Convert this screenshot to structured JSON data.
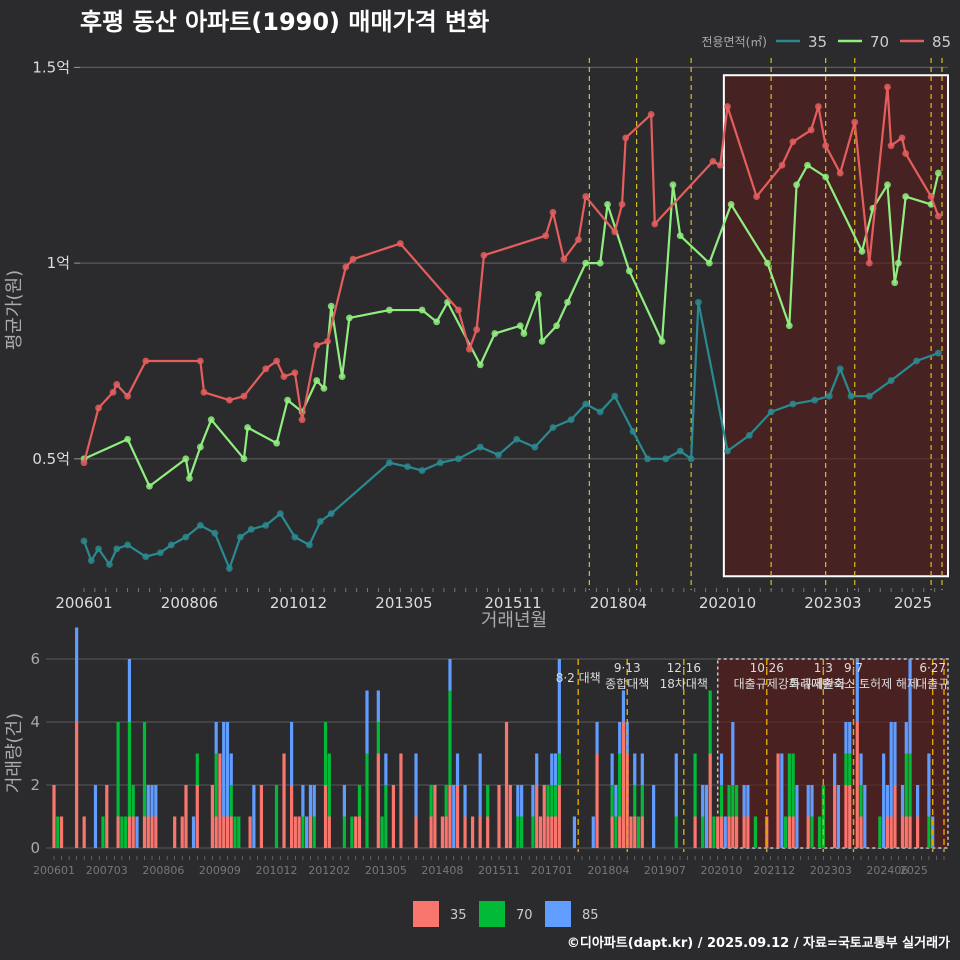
{
  "chart_data": [
    {
      "type": "line",
      "title": "후평 동산 아파트(1990) 매매가격 변화",
      "xlabel": "거래년월",
      "ylabel": "평균가(원)",
      "y_unit": "억",
      "ylim": [
        0.17,
        1.57
      ],
      "y_ticks": [
        {
          "value": 0.5,
          "label": "0.5억"
        },
        {
          "value": 1.0,
          "label": "1억"
        },
        {
          "value": 1.5,
          "label": "1.5억"
        }
      ],
      "x_tick_labels": [
        "200601",
        "200806",
        "201012",
        "201305",
        "201511",
        "201804",
        "202010",
        "202303",
        "2025"
      ],
      "legend": {
        "title": "전용면적(㎡)",
        "position": "top-right"
      },
      "series": [
        {
          "name": "35",
          "color": "#2a8a8f",
          "points": [
            [
              "2006-01",
              0.29
            ],
            [
              "2006-03",
              0.24
            ],
            [
              "2006-05",
              0.27
            ],
            [
              "2006-08",
              0.23
            ],
            [
              "2006-10",
              0.27
            ],
            [
              "2007-01",
              0.28
            ],
            [
              "2007-06",
              0.25
            ],
            [
              "2007-10",
              0.26
            ],
            [
              "2008-01",
              0.28
            ],
            [
              "2008-05",
              0.3
            ],
            [
              "2008-09",
              0.33
            ],
            [
              "2009-01",
              0.31
            ],
            [
              "2009-05",
              0.22
            ],
            [
              "2009-08",
              0.3
            ],
            [
              "2009-11",
              0.32
            ],
            [
              "2010-03",
              0.33
            ],
            [
              "2010-07",
              0.36
            ],
            [
              "2010-11",
              0.3
            ],
            [
              "2011-03",
              0.28
            ],
            [
              "2011-06",
              0.34
            ],
            [
              "2011-09",
              0.36
            ],
            [
              "2013-01",
              0.49
            ],
            [
              "2013-06",
              0.48
            ],
            [
              "2013-10",
              0.47
            ],
            [
              "2014-03",
              0.49
            ],
            [
              "2014-08",
              0.5
            ],
            [
              "2015-02",
              0.53
            ],
            [
              "2015-07",
              0.51
            ],
            [
              "2015-12",
              0.55
            ],
            [
              "2016-05",
              0.53
            ],
            [
              "2016-10",
              0.58
            ],
            [
              "2017-03",
              0.6
            ],
            [
              "2017-07",
              0.64
            ],
            [
              "2017-11",
              0.62
            ],
            [
              "2018-03",
              0.66
            ],
            [
              "2018-08",
              0.57
            ],
            [
              "2018-12",
              0.5
            ],
            [
              "2019-05",
              0.5
            ],
            [
              "2019-09",
              0.52
            ],
            [
              "2019-12",
              0.5
            ],
            [
              "2020-02",
              0.9
            ],
            [
              "2020-10",
              0.52
            ],
            [
              "2021-04",
              0.56
            ],
            [
              "2021-10",
              0.62
            ],
            [
              "2022-04",
              0.64
            ],
            [
              "2022-10",
              0.65
            ],
            [
              "2023-02",
              0.66
            ],
            [
              "2023-05",
              0.73
            ],
            [
              "2023-08",
              0.66
            ],
            [
              "2024-01",
              0.66
            ],
            [
              "2024-07",
              0.7
            ],
            [
              "2025-02",
              0.75
            ],
            [
              "2025-08",
              0.77
            ]
          ]
        },
        {
          "name": "70",
          "color": "#90ee80",
          "points": [
            [
              "2006-01",
              0.5
            ],
            [
              "2007-01",
              0.55
            ],
            [
              "2007-07",
              0.43
            ],
            [
              "2008-05",
              0.5
            ],
            [
              "2008-06",
              0.45
            ],
            [
              "2008-09",
              0.53
            ],
            [
              "2008-12",
              0.6
            ],
            [
              "2009-09",
              0.5
            ],
            [
              "2009-10",
              0.58
            ],
            [
              "2010-06",
              0.54
            ],
            [
              "2010-09",
              0.65
            ],
            [
              "2011-01",
              0.62
            ],
            [
              "2011-05",
              0.7
            ],
            [
              "2011-07",
              0.68
            ],
            [
              "2011-09",
              0.89
            ],
            [
              "2011-12",
              0.71
            ],
            [
              "2012-02",
              0.86
            ],
            [
              "2013-01",
              0.88
            ],
            [
              "2013-10",
              0.88
            ],
            [
              "2014-02",
              0.85
            ],
            [
              "2014-05",
              0.9
            ],
            [
              "2015-02",
              0.74
            ],
            [
              "2015-06",
              0.82
            ],
            [
              "2016-01",
              0.84
            ],
            [
              "2016-02",
              0.82
            ],
            [
              "2016-06",
              0.92
            ],
            [
              "2016-07",
              0.8
            ],
            [
              "2016-11",
              0.84
            ],
            [
              "2017-02",
              0.9
            ],
            [
              "2017-07",
              1.0
            ],
            [
              "2017-11",
              1.0
            ],
            [
              "2018-01",
              1.15
            ],
            [
              "2018-07",
              0.98
            ],
            [
              "2019-04",
              0.8
            ],
            [
              "2019-07",
              1.2
            ],
            [
              "2019-09",
              1.07
            ],
            [
              "2020-05",
              1.0
            ],
            [
              "2020-11",
              1.15
            ],
            [
              "2021-09",
              1.0
            ],
            [
              "2022-03",
              0.84
            ],
            [
              "2022-05",
              1.2
            ],
            [
              "2022-08",
              1.25
            ],
            [
              "2023-01",
              1.22
            ],
            [
              "2023-11",
              1.03
            ],
            [
              "2024-02",
              1.14
            ],
            [
              "2024-06",
              1.2
            ],
            [
              "2024-08",
              0.95
            ],
            [
              "2024-09",
              1.0
            ],
            [
              "2024-11",
              1.17
            ],
            [
              "2025-06",
              1.15
            ],
            [
              "2025-08",
              1.23
            ]
          ]
        },
        {
          "name": "85",
          "color": "#e45e5e",
          "points": [
            [
              "2006-01",
              0.49
            ],
            [
              "2006-05",
              0.63
            ],
            [
              "2006-09",
              0.67
            ],
            [
              "2006-10",
              0.69
            ],
            [
              "2007-01",
              0.66
            ],
            [
              "2007-06",
              0.75
            ],
            [
              "2008-09",
              0.75
            ],
            [
              "2008-10",
              0.67
            ],
            [
              "2009-05",
              0.65
            ],
            [
              "2009-09",
              0.66
            ],
            [
              "2010-03",
              0.73
            ],
            [
              "2010-06",
              0.75
            ],
            [
              "2010-08",
              0.71
            ],
            [
              "2010-11",
              0.72
            ],
            [
              "2011-01",
              0.6
            ],
            [
              "2011-05",
              0.79
            ],
            [
              "2011-08",
              0.8
            ],
            [
              "2012-01",
              0.99
            ],
            [
              "2012-03",
              1.01
            ],
            [
              "2013-04",
              1.05
            ],
            [
              "2014-08",
              0.88
            ],
            [
              "2014-11",
              0.78
            ],
            [
              "2015-01",
              0.83
            ],
            [
              "2015-03",
              1.02
            ],
            [
              "2016-08",
              1.07
            ],
            [
              "2016-10",
              1.13
            ],
            [
              "2017-01",
              1.01
            ],
            [
              "2017-05",
              1.06
            ],
            [
              "2017-07",
              1.17
            ],
            [
              "2018-03",
              1.08
            ],
            [
              "2018-05",
              1.15
            ],
            [
              "2018-06",
              1.32
            ],
            [
              "2019-01",
              1.38
            ],
            [
              "2019-02",
              1.1
            ],
            [
              "2020-06",
              1.26
            ],
            [
              "2020-08",
              1.25
            ],
            [
              "2020-10",
              1.4
            ],
            [
              "2021-06",
              1.17
            ],
            [
              "2022-01",
              1.25
            ],
            [
              "2022-04",
              1.31
            ],
            [
              "2022-09",
              1.34
            ],
            [
              "2022-11",
              1.4
            ],
            [
              "2023-01",
              1.3
            ],
            [
              "2023-05",
              1.23
            ],
            [
              "2023-09",
              1.36
            ],
            [
              "2024-01",
              1.0
            ],
            [
              "2024-06",
              1.45
            ],
            [
              "2024-07",
              1.3
            ],
            [
              "2024-10",
              1.32
            ],
            [
              "2024-11",
              1.28
            ],
            [
              "2025-06",
              1.17
            ],
            [
              "2025-08",
              1.12
            ]
          ]
        }
      ],
      "vlines": [
        "2017-08",
        "2018-09",
        "2019-12",
        "2021-10",
        "2023-01",
        "2023-09",
        "2025-06",
        "2025-09"
      ],
      "highlight_box": {
        "x": [
          "2020-09",
          "2025-09"
        ],
        "y": [
          0.2,
          1.48
        ]
      }
    },
    {
      "type": "bar",
      "ylabel": "거래량(건)",
      "ylim": [
        0,
        6
      ],
      "y_ticks": [
        0,
        2,
        4,
        6
      ],
      "x_tick_labels": [
        "200601",
        "200703",
        "200806",
        "200909",
        "201012",
        "201202",
        "201305",
        "201408",
        "201511",
        "201701",
        "201804",
        "201907",
        "202010",
        "202112",
        "202303",
        "202406",
        "2025"
      ],
      "series_names": [
        "35",
        "70",
        "85"
      ],
      "colors": {
        "35": "#f8766d",
        "70": "#00ba38",
        "85": "#619cff"
      },
      "annotations": [
        {
          "date": "2017-08",
          "lines": [
            "8·2 대책"
          ]
        },
        {
          "date": "2018-09",
          "lines": [
            "9·13",
            "종합대책"
          ]
        },
        {
          "date": "2019-12",
          "lines": [
            "12·16",
            "18차대책"
          ]
        },
        {
          "date": "2021-10",
          "lines": [
            "10·26",
            "대출규제강화"
          ]
        },
        {
          "date": "2023-01",
          "lines": [
            "1·3",
            "규제완화"
          ]
        },
        {
          "date": "2023-09",
          "lines": [
            "9·7",
            "특례대출축소 토허제 해제"
          ]
        },
        {
          "date": "2025-06",
          "lines": [
            "6·27",
            "대출규"
          ]
        }
      ],
      "highlight_box": {
        "x": [
          "2020-09",
          "2025-09"
        ]
      }
    }
  ],
  "credit": "©디아파트(dapt.kr) / 2025.09.12 / 자료=국토교통부 실거래가"
}
